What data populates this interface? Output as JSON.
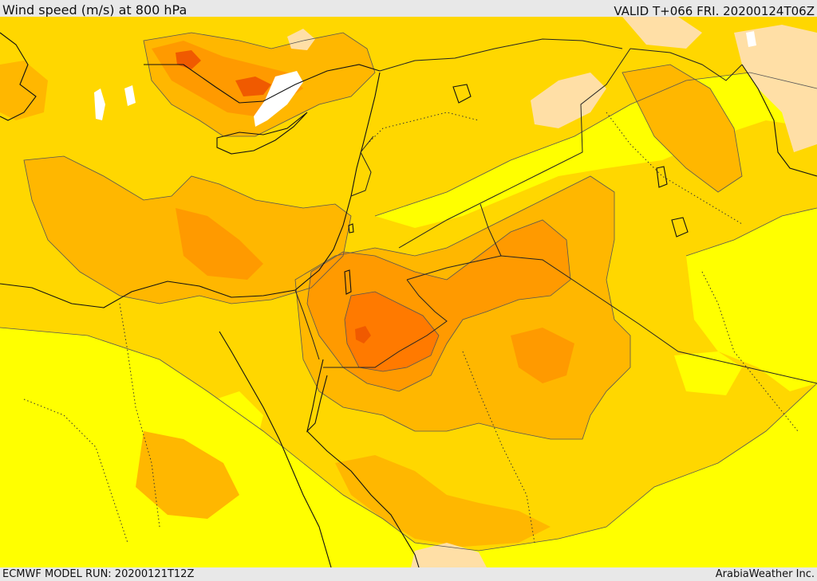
{
  "header": {
    "title": "Wind speed (m/s) at 800 hPa",
    "valid_time": "VALID T+066 FRI. 20200124T06Z"
  },
  "footer": {
    "model_run": "ECMWF MODEL RUN: 20200121T12Z",
    "credit": "ArabiaWeather Inc."
  },
  "map": {
    "region": "Eastern Mediterranean and Middle East",
    "field": "Wind speed (m/s) at 800 hPa",
    "colors": {
      "calm": "#ffffff",
      "very_light": "#ffdfa6",
      "light": "#ffff00",
      "moderate": "#ffd700",
      "strong": "#ffb700",
      "stronger": "#ff9a00",
      "strongest": "#ff7a00",
      "peak": "#f05a00"
    }
  }
}
